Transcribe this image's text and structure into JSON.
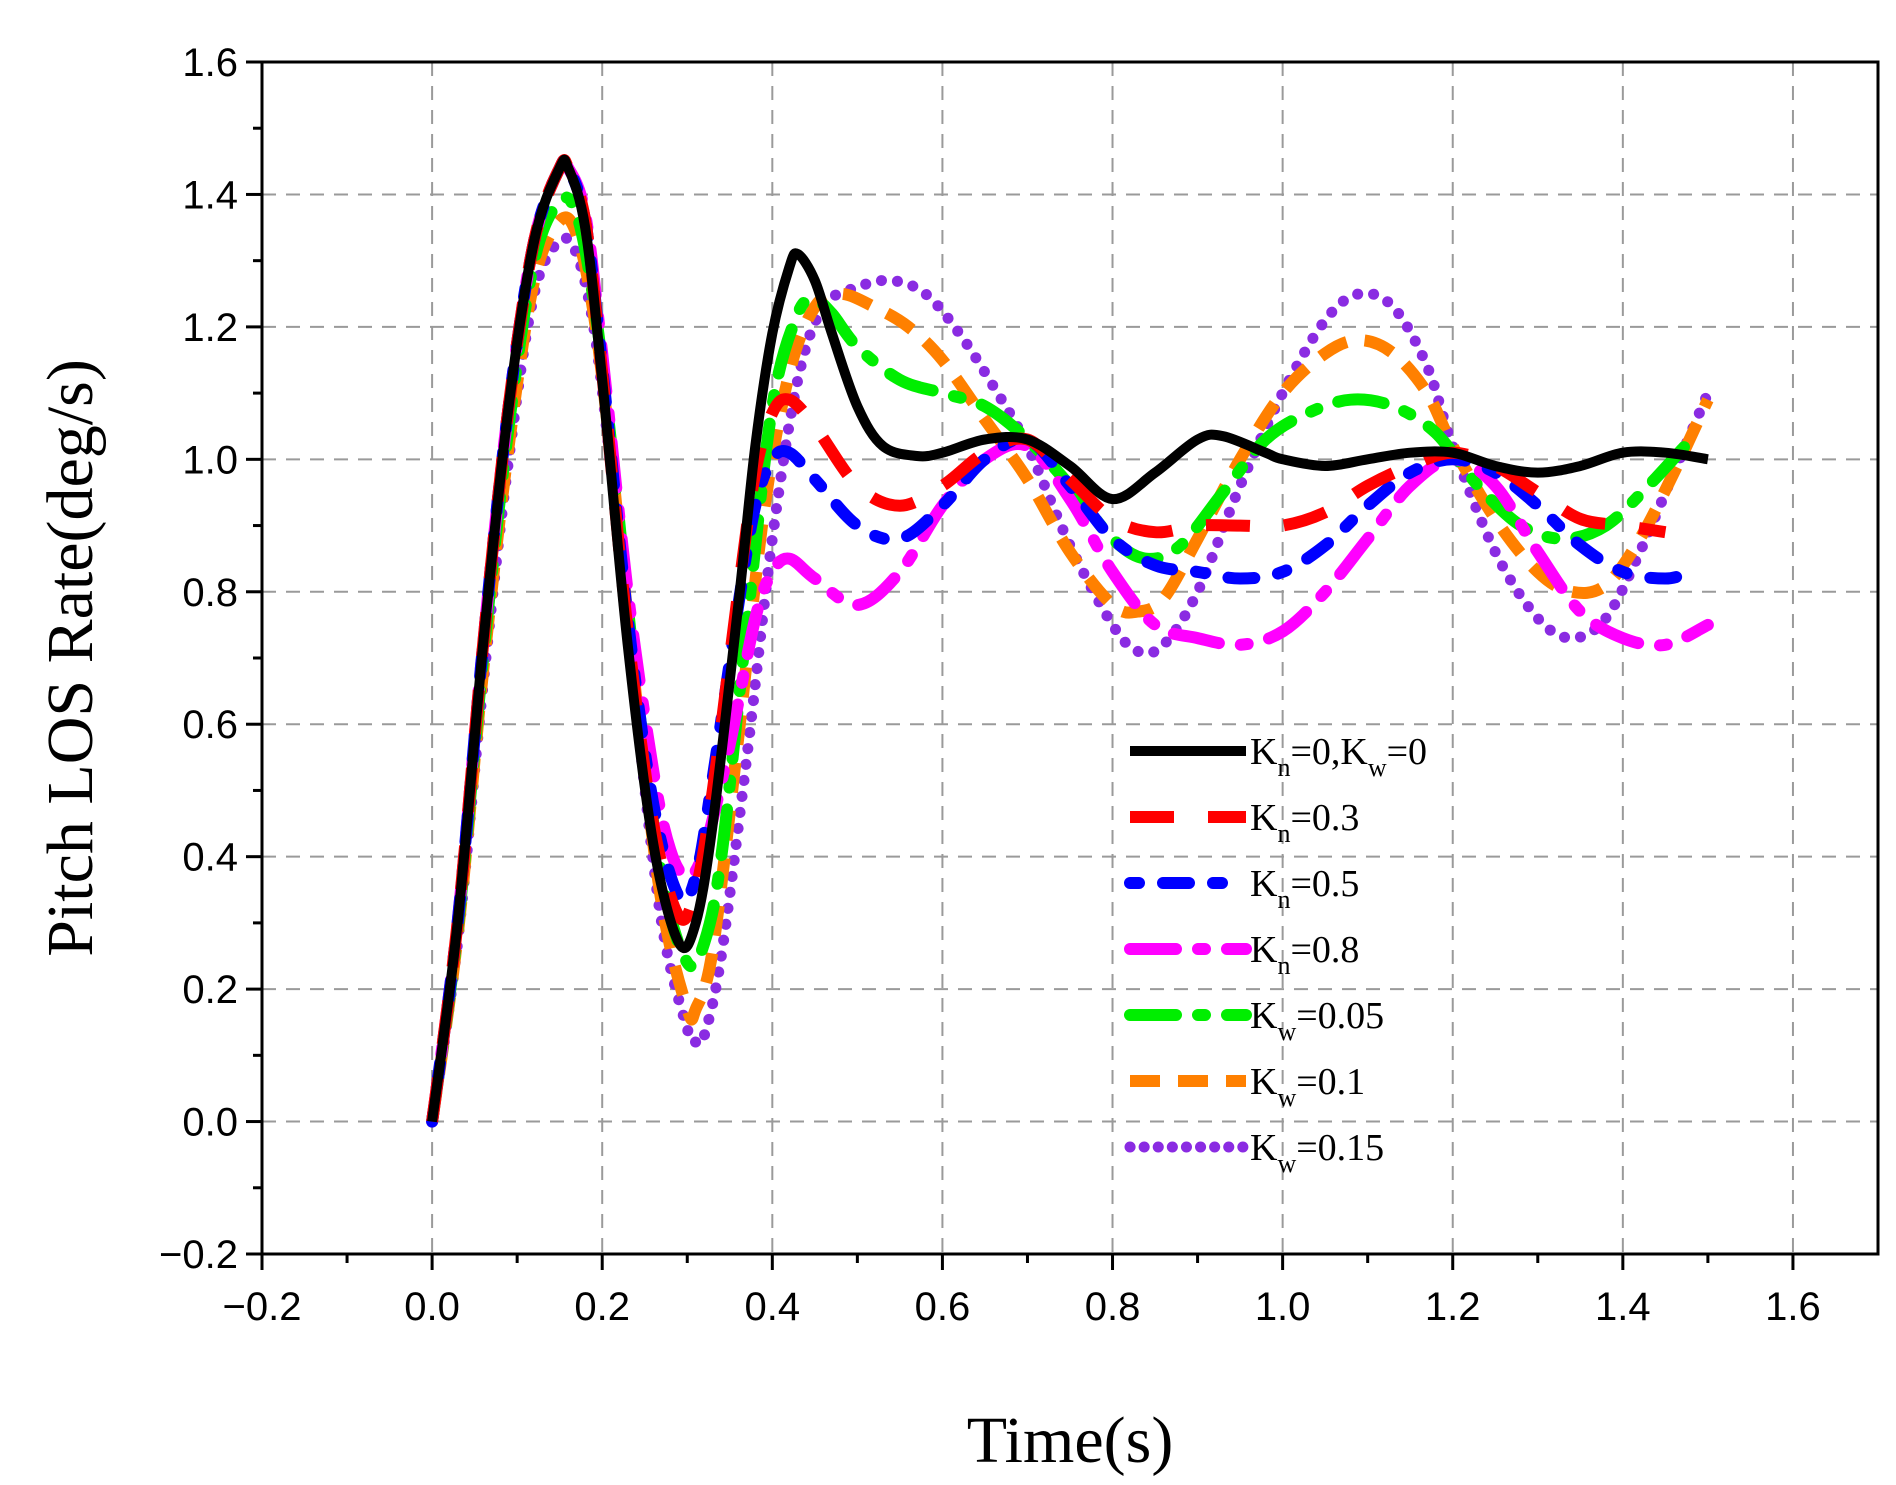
{
  "chart_data": {
    "type": "line",
    "title": "",
    "xlabel": "Time(s)",
    "ylabel": "Pitch LOS Rate(deg/s)",
    "xlim": [
      -0.2,
      1.7
    ],
    "ylim": [
      -0.2,
      1.6
    ],
    "xticks": [
      -0.2,
      0.0,
      0.2,
      0.4,
      0.6,
      0.8,
      1.0,
      1.2,
      1.4,
      1.6
    ],
    "xtick_labels": [
      "−0.2",
      "0.0",
      "0.2",
      "0.4",
      "0.6",
      "0.8",
      "1.0",
      "1.2",
      "1.4",
      "1.6"
    ],
    "yticks": [
      -0.2,
      0.0,
      0.2,
      0.4,
      0.6,
      0.8,
      1.0,
      1.2,
      1.4,
      1.6
    ],
    "ytick_labels": [
      "−0.2",
      "0.0",
      "0.2",
      "0.4",
      "0.6",
      "0.8",
      "1.0",
      "1.2",
      "1.4",
      "1.6"
    ],
    "grid": true,
    "legend_position": "center-right",
    "series": [
      {
        "name": "Kn=0,Kw=0",
        "label_parts": [
          [
            "K",
            ""
          ],
          [
            "n",
            "sub"
          ],
          [
            "=0,K",
            ""
          ],
          [
            "w",
            "sub"
          ],
          [
            "=0",
            ""
          ]
        ],
        "color": "#000000",
        "style": "solid",
        "x": [
          0,
          0.03,
          0.06,
          0.09,
          0.12,
          0.15,
          0.16,
          0.18,
          0.2,
          0.23,
          0.26,
          0.29,
          0.31,
          0.33,
          0.36,
          0.38,
          0.4,
          0.42,
          0.43,
          0.45,
          0.47,
          0.5,
          0.53,
          0.57,
          0.6,
          0.65,
          0.7,
          0.75,
          0.8,
          0.85,
          0.9,
          0.93,
          0.98,
          1.0,
          1.05,
          1.1,
          1.15,
          1.2,
          1.25,
          1.3,
          1.35,
          1.4,
          1.45,
          1.5
        ],
        "y": [
          0,
          0.3,
          0.72,
          1.08,
          1.33,
          1.44,
          1.44,
          1.35,
          1.12,
          0.72,
          0.42,
          0.27,
          0.3,
          0.45,
          0.78,
          1.02,
          1.19,
          1.29,
          1.31,
          1.27,
          1.19,
          1.08,
          1.02,
          1.005,
          1.01,
          1.03,
          1.03,
          0.99,
          0.94,
          0.98,
          1.03,
          1.035,
          1.01,
          1.0,
          0.99,
          1.0,
          1.01,
          1.01,
          0.99,
          0.98,
          0.99,
          1.01,
          1.01,
          1.0
        ]
      },
      {
        "name": "Kn=0.3",
        "label_parts": [
          [
            "K",
            ""
          ],
          [
            "n",
            "sub"
          ],
          [
            "=0.3",
            ""
          ]
        ],
        "color": "#ff0000",
        "style": "dash-long",
        "x": [
          0,
          0.03,
          0.06,
          0.09,
          0.12,
          0.15,
          0.16,
          0.18,
          0.2,
          0.23,
          0.26,
          0.29,
          0.31,
          0.33,
          0.36,
          0.38,
          0.4,
          0.42,
          0.45,
          0.5,
          0.55,
          0.6,
          0.65,
          0.7,
          0.75,
          0.8,
          0.85,
          0.9,
          0.95,
          1.0,
          1.05,
          1.1,
          1.15,
          1.2,
          1.25,
          1.3,
          1.35,
          1.4,
          1.45
        ],
        "y": [
          0,
          0.3,
          0.72,
          1.08,
          1.33,
          1.44,
          1.44,
          1.36,
          1.13,
          0.74,
          0.45,
          0.31,
          0.35,
          0.5,
          0.8,
          0.98,
          1.07,
          1.09,
          1.05,
          0.96,
          0.93,
          0.96,
          1.01,
          1.03,
          0.97,
          0.91,
          0.89,
          0.9,
          0.9,
          0.9,
          0.92,
          0.96,
          0.99,
          1.01,
          0.99,
          0.95,
          0.91,
          0.9,
          0.89
        ]
      },
      {
        "name": "Kn=0.5",
        "label_parts": [
          [
            "K",
            ""
          ],
          [
            "n",
            "sub"
          ],
          [
            "=0.5",
            ""
          ]
        ],
        "color": "#0000ff",
        "style": "dot-dash",
        "x": [
          0,
          0.03,
          0.06,
          0.09,
          0.12,
          0.15,
          0.16,
          0.18,
          0.2,
          0.23,
          0.26,
          0.29,
          0.31,
          0.33,
          0.36,
          0.38,
          0.4,
          0.42,
          0.45,
          0.5,
          0.55,
          0.6,
          0.65,
          0.7,
          0.75,
          0.8,
          0.85,
          0.9,
          0.95,
          1.0,
          1.05,
          1.1,
          1.15,
          1.2,
          1.25,
          1.3,
          1.35,
          1.4,
          1.45,
          1.48
        ],
        "y": [
          0,
          0.3,
          0.72,
          1.08,
          1.33,
          1.44,
          1.44,
          1.36,
          1.14,
          0.76,
          0.48,
          0.34,
          0.37,
          0.52,
          0.78,
          0.93,
          1.0,
          1.01,
          0.97,
          0.9,
          0.88,
          0.93,
          1.0,
          1.03,
          0.96,
          0.88,
          0.84,
          0.83,
          0.82,
          0.83,
          0.87,
          0.93,
          0.98,
          1.0,
          0.98,
          0.93,
          0.87,
          0.83,
          0.82,
          0.83
        ]
      },
      {
        "name": "Kn=0.8",
        "label_parts": [
          [
            "K",
            ""
          ],
          [
            "n",
            "sub"
          ],
          [
            "=0.8",
            ""
          ]
        ],
        "color": "#ff00ff",
        "style": "dash-dot",
        "x": [
          0,
          0.03,
          0.06,
          0.09,
          0.12,
          0.15,
          0.16,
          0.18,
          0.2,
          0.23,
          0.26,
          0.28,
          0.3,
          0.32,
          0.35,
          0.38,
          0.4,
          0.42,
          0.45,
          0.5,
          0.55,
          0.6,
          0.65,
          0.7,
          0.75,
          0.8,
          0.85,
          0.9,
          0.95,
          1.0,
          1.05,
          1.1,
          1.15,
          1.2,
          1.25,
          1.3,
          1.35,
          1.4,
          1.45,
          1.5
        ],
        "y": [
          0,
          0.3,
          0.72,
          1.08,
          1.33,
          1.44,
          1.44,
          1.37,
          1.16,
          0.8,
          0.53,
          0.41,
          0.37,
          0.41,
          0.57,
          0.76,
          0.83,
          0.85,
          0.82,
          0.78,
          0.83,
          0.93,
          1.0,
          1.02,
          0.94,
          0.83,
          0.75,
          0.73,
          0.72,
          0.74,
          0.8,
          0.88,
          0.96,
          1.0,
          0.96,
          0.86,
          0.77,
          0.73,
          0.72,
          0.75
        ]
      },
      {
        "name": "Kw=0.05",
        "label_parts": [
          [
            "K",
            ""
          ],
          [
            "w",
            "sub"
          ],
          [
            "=0.05",
            ""
          ]
        ],
        "color": "#00ee00",
        "style": "dash-dot",
        "x": [
          0,
          0.03,
          0.06,
          0.09,
          0.12,
          0.15,
          0.17,
          0.19,
          0.21,
          0.24,
          0.27,
          0.3,
          0.32,
          0.34,
          0.37,
          0.4,
          0.43,
          0.45,
          0.47,
          0.5,
          0.55,
          0.6,
          0.65,
          0.7,
          0.75,
          0.8,
          0.84,
          0.88,
          0.93,
          0.98,
          1.03,
          1.08,
          1.13,
          1.18,
          1.23,
          1.28,
          1.33,
          1.38,
          1.43,
          1.48
        ],
        "y": [
          0,
          0.29,
          0.7,
          1.05,
          1.3,
          1.39,
          1.37,
          1.24,
          1.03,
          0.66,
          0.37,
          0.24,
          0.27,
          0.4,
          0.75,
          1.08,
          1.22,
          1.24,
          1.22,
          1.17,
          1.12,
          1.1,
          1.08,
          1.03,
          0.96,
          0.88,
          0.85,
          0.87,
          0.95,
          1.03,
          1.07,
          1.09,
          1.08,
          1.04,
          0.96,
          0.9,
          0.88,
          0.9,
          0.96,
          1.03
        ]
      },
      {
        "name": "Kw=0.1",
        "label_parts": [
          [
            "K",
            ""
          ],
          [
            "w",
            "sub"
          ],
          [
            "=0.1",
            ""
          ]
        ],
        "color": "#ff8000",
        "style": "dash",
        "x": [
          0,
          0.03,
          0.06,
          0.09,
          0.12,
          0.15,
          0.17,
          0.19,
          0.21,
          0.24,
          0.27,
          0.3,
          0.31,
          0.33,
          0.36,
          0.39,
          0.42,
          0.45,
          0.48,
          0.52,
          0.56,
          0.6,
          0.65,
          0.7,
          0.75,
          0.8,
          0.83,
          0.86,
          0.9,
          0.95,
          1.0,
          1.05,
          1.09,
          1.13,
          1.17,
          1.2,
          1.25,
          1.3,
          1.34,
          1.38,
          1.42,
          1.46,
          1.5
        ],
        "y": [
          0,
          0.28,
          0.68,
          1.02,
          1.27,
          1.36,
          1.34,
          1.22,
          1.01,
          0.64,
          0.33,
          0.17,
          0.17,
          0.26,
          0.58,
          0.92,
          1.13,
          1.23,
          1.25,
          1.23,
          1.2,
          1.15,
          1.06,
          0.97,
          0.86,
          0.78,
          0.77,
          0.79,
          0.88,
          1.0,
          1.1,
          1.16,
          1.18,
          1.16,
          1.1,
          1.02,
          0.91,
          0.83,
          0.8,
          0.81,
          0.88,
          0.98,
          1.09
        ]
      },
      {
        "name": "Kw=0.15",
        "label_parts": [
          [
            "K",
            ""
          ],
          [
            "w",
            "sub"
          ],
          [
            "=0.15",
            ""
          ]
        ],
        "color": "#8a2be2",
        "style": "dot",
        "x": [
          0,
          0.03,
          0.06,
          0.09,
          0.12,
          0.15,
          0.17,
          0.19,
          0.21,
          0.24,
          0.27,
          0.3,
          0.31,
          0.32,
          0.34,
          0.37,
          0.4,
          0.43,
          0.46,
          0.5,
          0.54,
          0.58,
          0.62,
          0.66,
          0.7,
          0.75,
          0.8,
          0.83,
          0.86,
          0.9,
          0.95,
          1.0,
          1.05,
          1.09,
          1.13,
          1.17,
          1.2,
          1.25,
          1.3,
          1.34,
          1.38,
          1.42,
          1.46,
          1.5
        ],
        "y": [
          0,
          0.27,
          0.66,
          1.0,
          1.25,
          1.33,
          1.31,
          1.2,
          0.99,
          0.62,
          0.3,
          0.14,
          0.12,
          0.13,
          0.25,
          0.55,
          0.88,
          1.12,
          1.23,
          1.26,
          1.27,
          1.25,
          1.19,
          1.11,
          1.02,
          0.87,
          0.75,
          0.71,
          0.72,
          0.8,
          0.96,
          1.1,
          1.21,
          1.25,
          1.23,
          1.14,
          1.02,
          0.86,
          0.76,
          0.73,
          0.76,
          0.86,
          0.98,
          1.1
        ]
      }
    ]
  }
}
